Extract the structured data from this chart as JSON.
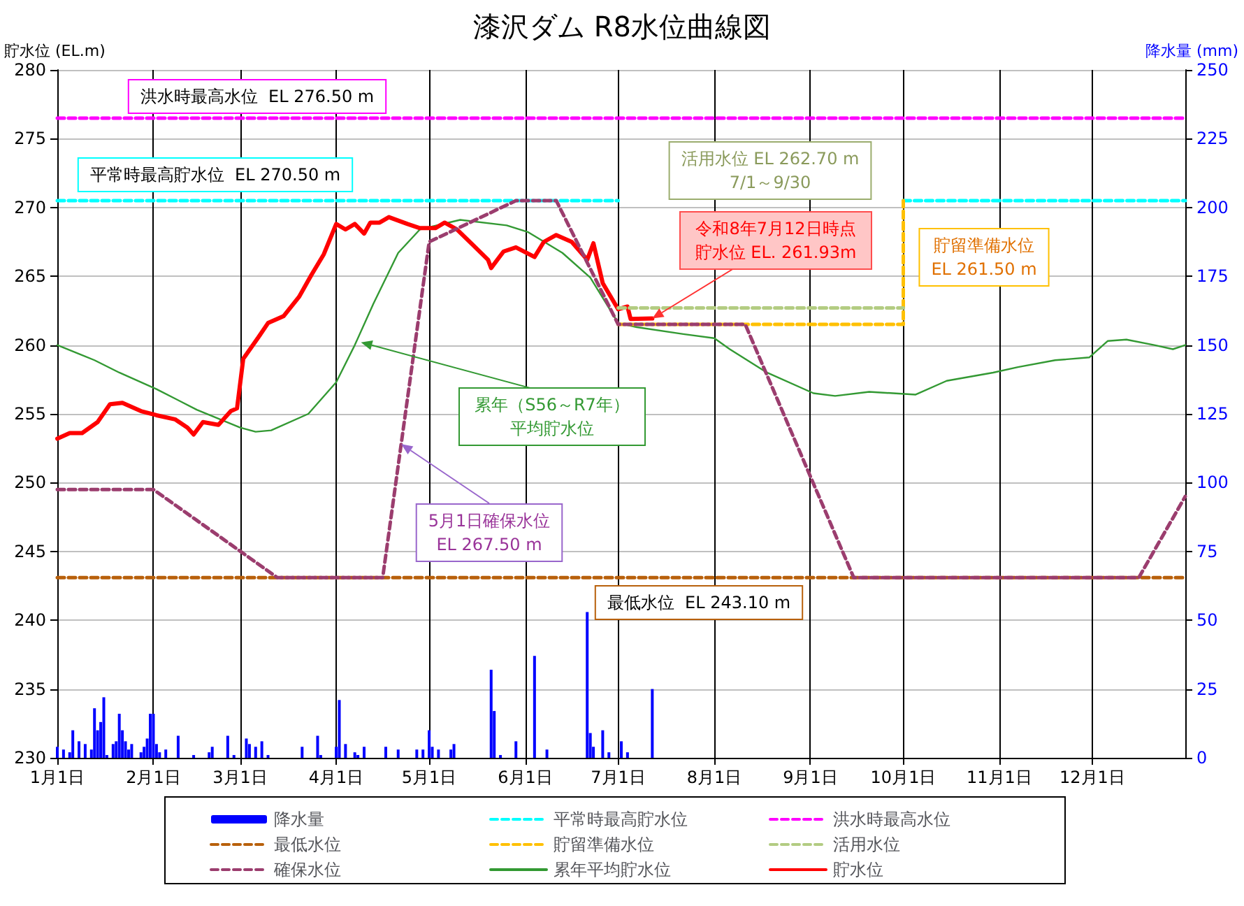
{
  "chart_data": {
    "type": "line",
    "title": "漆沢ダム R8水位曲線図",
    "ylabel": "貯水位 (EL.m)",
    "y2label": "降水量 (mm)",
    "xlim": [
      "--01-01",
      "--12-31"
    ],
    "xticks": [
      {
        "value": "--01-01",
        "label": "1月1日"
      },
      {
        "value": "--02-01",
        "label": "2月1日"
      },
      {
        "value": "--03-01",
        "label": "3月1日"
      },
      {
        "value": "--04-01",
        "label": "4月1日"
      },
      {
        "value": "--05-01",
        "label": "5月1日"
      },
      {
        "value": "--06-01",
        "label": "6月1日"
      },
      {
        "value": "--07-01",
        "label": "7月1日"
      },
      {
        "value": "--08-01",
        "label": "8月1日"
      },
      {
        "value": "--09-01",
        "label": "9月1日"
      },
      {
        "value": "--10-01",
        "label": "10月1日"
      },
      {
        "value": "--11-01",
        "label": "11月1日"
      },
      {
        "value": "--12-01",
        "label": "12月1日"
      }
    ],
    "ylim": [
      230,
      280
    ],
    "yticks": [
      230,
      235,
      240,
      245,
      250,
      255,
      260,
      265,
      270,
      275,
      280
    ],
    "y2lim": [
      0,
      250
    ],
    "y2ticks": [
      0,
      25,
      50,
      75,
      100,
      125,
      150,
      175,
      200,
      225,
      250
    ],
    "grid": true,
    "legend": "bottom",
    "marker": "none",
    "series": [
      {
        "name": "降水量",
        "type": "bar",
        "axis": "y2",
        "color": "#0000ff",
        "x": [
          "--01-01",
          "--01-03",
          "--01-05",
          "--01-06",
          "--01-08",
          "--01-10",
          "--01-12",
          "--01-13",
          "--01-14",
          "--01-15",
          "--01-16",
          "--01-17",
          "--01-19",
          "--01-20",
          "--01-21",
          "--01-22",
          "--01-23",
          "--01-24",
          "--01-25",
          "--01-28",
          "--01-29",
          "--01-30",
          "--01-31",
          "--02-01",
          "--02-02",
          "--02-03",
          "--02-05",
          "--02-09",
          "--02-14",
          "--02-19",
          "--02-20",
          "--02-25",
          "--02-27",
          "--03-03",
          "--03-04",
          "--03-06",
          "--03-08",
          "--03-10",
          "--03-21",
          "--03-26",
          "--03-27",
          "--04-01",
          "--04-02",
          "--04-04",
          "--04-07",
          "--04-08",
          "--04-10",
          "--04-17",
          "--04-21",
          "--04-27",
          "--04-29",
          "--05-01",
          "--05-02",
          "--05-04",
          "--05-08",
          "--05-09",
          "--05-21",
          "--05-22",
          "--05-24",
          "--05-29",
          "--06-04",
          "--06-08",
          "--06-21",
          "--06-22",
          "--06-23",
          "--06-26",
          "--06-28",
          "--07-02",
          "--07-04",
          "--07-12"
        ],
        "values": [
          4,
          3,
          2,
          10,
          6,
          5,
          3,
          18,
          10,
          13,
          22,
          1,
          5,
          6,
          16,
          10,
          6,
          3,
          5,
          2,
          4,
          7,
          16,
          16,
          5,
          2,
          3,
          8,
          1,
          2,
          4,
          8,
          1,
          7,
          5,
          4,
          6,
          1,
          4,
          8,
          1,
          4,
          21,
          5,
          2,
          1,
          4,
          4,
          3,
          3,
          3,
          10,
          4,
          3,
          3,
          5,
          32,
          17,
          1,
          6,
          37,
          3,
          53,
          9,
          4,
          10,
          2,
          6,
          2,
          25
        ]
      },
      {
        "name": "平常時最高貯水位",
        "color": "#00ffff",
        "line_style": "dashed",
        "x": [
          "--01-01",
          "--07-01",
          "--07-02",
          "--09-30",
          "--10-01",
          "--12-31"
        ],
        "values": [
          270.5,
          270.5,
          null,
          null,
          270.5,
          270.5
        ]
      },
      {
        "name": "洪水時最高水位",
        "color": "#ff00ff",
        "line_style": "dashed",
        "x": [
          "--01-01",
          "--12-31"
        ],
        "values": [
          276.5,
          276.5
        ]
      },
      {
        "name": "最低水位",
        "color": "#b8600b",
        "line_style": "dashed",
        "x": [
          "--01-01",
          "--12-31"
        ],
        "values": [
          243.1,
          243.1
        ]
      },
      {
        "name": "貯留準備水位",
        "color": "#ffc000",
        "line_style": "dashed",
        "x": [
          "--07-01",
          "--10-01",
          "--10-01"
        ],
        "values": [
          261.5,
          261.5,
          270.5
        ]
      },
      {
        "name": "活用水位",
        "color": "#b3cc82",
        "line_style": "dashed",
        "x": [
          "--07-01",
          "--10-01"
        ],
        "values": [
          262.7,
          262.7
        ]
      },
      {
        "name": "確保水位",
        "color": "#9b3d6e",
        "line_style": "dashed",
        "x": [
          "--01-01",
          "--02-01",
          "--03-13",
          "--04-16",
          "--05-01",
          "--05-29",
          "--06-11",
          "--07-01",
          "--08-11",
          "--09-15",
          "--12-16",
          "--12-31"
        ],
        "values": [
          249.5,
          249.5,
          243.1,
          243.1,
          267.5,
          270.5,
          270.5,
          261.5,
          261.5,
          243.1,
          243.1,
          249.0
        ]
      },
      {
        "name": "累年平均貯水位",
        "color": "#339933",
        "line_style": "solid",
        "x": [
          "--01-01",
          "--01-13",
          "--01-21",
          "--02-02",
          "--02-15",
          "--03-01",
          "--03-06",
          "--03-11",
          "--03-23",
          "--04-01",
          "--04-07",
          "--04-13",
          "--04-21",
          "--04-28",
          "--05-11",
          "--05-26",
          "--06-02",
          "--06-13",
          "--06-22",
          "--07-01",
          "--07-07",
          "--07-22",
          "--08-01",
          "--08-06",
          "--08-18",
          "--09-02",
          "--09-09",
          "--09-20",
          "--10-05",
          "--10-15",
          "--10-30",
          "--11-07",
          "--11-19",
          "--11-30",
          "--12-06",
          "--12-12",
          "--12-21",
          "--12-27",
          "--12-31"
        ],
        "values": [
          260.0,
          258.9,
          258.0,
          256.8,
          255.3,
          254.0,
          253.7,
          253.8,
          255.0,
          257.3,
          260.0,
          263.0,
          266.7,
          268.4,
          269.1,
          268.7,
          268.2,
          266.7,
          264.9,
          261.6,
          261.3,
          260.8,
          260.5,
          259.7,
          258.0,
          256.5,
          256.3,
          256.6,
          256.4,
          257.4,
          258.0,
          258.4,
          258.9,
          259.1,
          260.3,
          260.4,
          260.0,
          259.7,
          260.0
        ]
      },
      {
        "name": "貯水位",
        "color": "#ff0000",
        "line_style": "solid",
        "x": [
          "--01-01",
          "--01-05",
          "--01-09",
          "--01-14",
          "--01-18",
          "--01-22",
          "--01-28",
          "--02-02",
          "--02-08",
          "--02-12",
          "--02-14",
          "--02-17",
          "--02-22",
          "--02-26",
          "--02-28",
          "--03-02",
          "--03-07",
          "--03-10",
          "--03-15",
          "--03-20",
          "--03-24",
          "--03-28",
          "--04-01",
          "--04-04",
          "--04-07",
          "--04-10",
          "--04-12",
          "--04-15",
          "--04-18",
          "--04-24",
          "--04-28",
          "--05-03",
          "--05-06",
          "--05-10",
          "--05-15",
          "--05-20",
          "--05-21",
          "--05-25",
          "--05-29",
          "--06-04",
          "--06-07",
          "--06-11",
          "--06-16",
          "--06-21",
          "--06-23",
          "--06-26",
          "--07-01",
          "--07-04",
          "--07-05",
          "--07-12"
        ],
        "values": [
          253.2,
          253.6,
          253.6,
          254.4,
          255.7,
          255.8,
          255.2,
          254.9,
          254.6,
          254.0,
          253.5,
          254.4,
          254.2,
          255.2,
          255.4,
          259.0,
          260.6,
          261.6,
          262.1,
          263.5,
          265.1,
          266.6,
          268.8,
          268.4,
          268.8,
          268.1,
          268.9,
          268.9,
          269.3,
          268.8,
          268.5,
          268.5,
          268.9,
          268.4,
          267.3,
          266.2,
          265.6,
          266.8,
          267.1,
          266.4,
          267.5,
          268.0,
          267.5,
          266.2,
          267.4,
          264.5,
          262.6,
          262.8,
          261.9,
          261.93
        ]
      }
    ],
    "annotations": [
      "洪水時最高水位  EL 276.50 m",
      "平常時最高貯水位  EL 270.50 m",
      "活用水位 EL 262.70 m\n7/1～9/30",
      {
        "text": "令和8年7月12日時点貯水位 EL. 261.93m",
        "x": "--07-12",
        "y": 261.93
      },
      "貯留準備水位\nEL 261.50 m",
      {
        "text": "累年（S56～R7年）平均貯水位",
        "x": "--04-09",
        "y": 260.2
      },
      {
        "text": "5月1日確保水位\nEL 267.50 m",
        "x": "--04-22",
        "y": 252.8
      },
      "最低水位  EL 243.10 m"
    ]
  }
}
